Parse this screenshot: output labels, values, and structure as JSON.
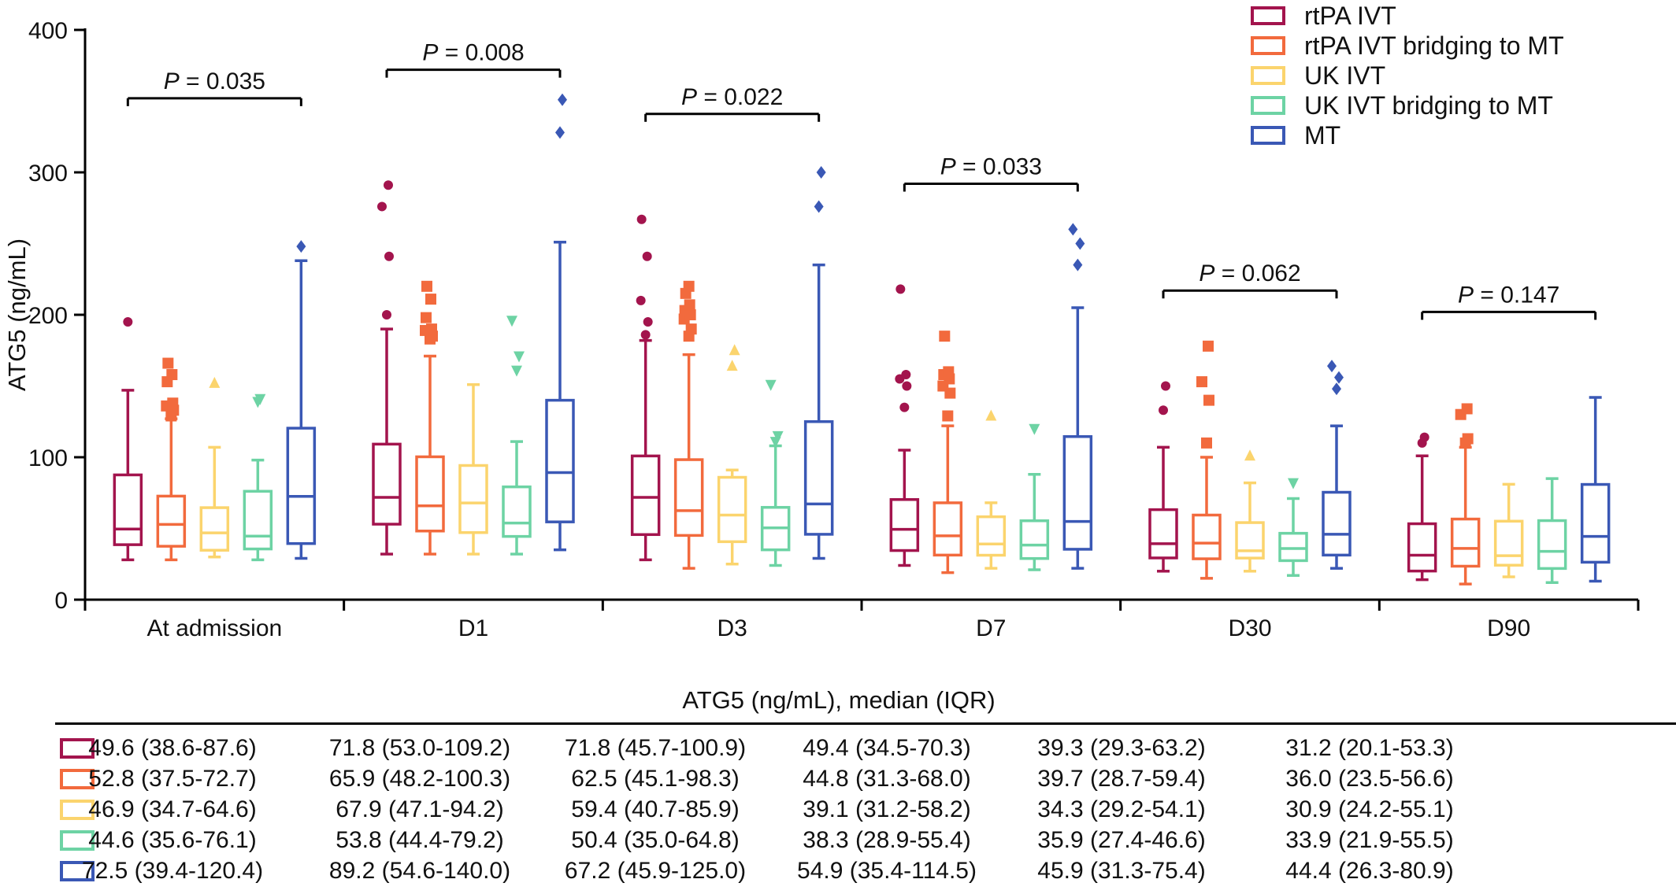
{
  "chart_data": {
    "type": "box",
    "ylabel": "ATG5 (ng/mL)",
    "ylim": [
      0,
      400
    ],
    "yticks": [
      0,
      100,
      200,
      300,
      400
    ],
    "grid": false,
    "legend_position": "top-right",
    "categories": [
      "At admission",
      "D1",
      "D3",
      "D7",
      "D30",
      "D90"
    ],
    "series": [
      {
        "name": "rtPA IVT",
        "color": "#a3144d",
        "marker": "circle",
        "boxes": [
          {
            "min": 28,
            "q1": 38.6,
            "median": 49.6,
            "q3": 87.6,
            "max": 147,
            "outliers": [
              195
            ]
          },
          {
            "min": 32,
            "q1": 53.0,
            "median": 71.8,
            "q3": 109.2,
            "max": 190,
            "outliers": [
              200,
              241,
              276,
              291
            ]
          },
          {
            "min": 28,
            "q1": 45.7,
            "median": 71.8,
            "q3": 100.9,
            "max": 182,
            "outliers": [
              186,
              195,
              210,
              241,
              267
            ]
          },
          {
            "min": 24,
            "q1": 34.5,
            "median": 49.4,
            "q3": 70.3,
            "max": 105,
            "outliers": [
              135,
              150,
              155,
              158,
              218
            ]
          },
          {
            "min": 20,
            "q1": 29.3,
            "median": 39.3,
            "q3": 63.2,
            "max": 107,
            "outliers": [
              133,
              150
            ]
          },
          {
            "min": 14,
            "q1": 20.1,
            "median": 31.2,
            "q3": 53.3,
            "max": 101,
            "outliers": [
              110,
              114
            ]
          }
        ]
      },
      {
        "name": "rtPA IVT bridging to MT",
        "color": "#f26a3d",
        "marker": "square",
        "boxes": [
          {
            "min": 28,
            "q1": 37.5,
            "median": 52.8,
            "q3": 72.7,
            "max": 127,
            "outliers": [
              129,
              133,
              136,
              138,
              153,
              158,
              166
            ]
          },
          {
            "min": 32,
            "q1": 48.2,
            "median": 65.9,
            "q3": 100.3,
            "max": 171,
            "outliers": [
              183,
              185,
              189,
              190,
              198,
              211,
              220
            ]
          },
          {
            "min": 22,
            "q1": 45.1,
            "median": 62.5,
            "q3": 98.3,
            "max": 172,
            "outliers": [
              185,
              190,
              197,
              200,
              203,
              207,
              215,
              220
            ]
          },
          {
            "min": 19,
            "q1": 31.3,
            "median": 44.8,
            "q3": 68.0,
            "max": 122,
            "outliers": [
              129,
              145,
              150,
              155,
              158,
              160,
              185
            ]
          },
          {
            "min": 15,
            "q1": 28.7,
            "median": 39.7,
            "q3": 59.4,
            "max": 100,
            "outliers": [
              110,
              140,
              153,
              178
            ]
          },
          {
            "min": 11,
            "q1": 23.5,
            "median": 36.0,
            "q3": 56.6,
            "max": 107,
            "outliers": [
              110,
              113,
              130,
              134
            ]
          }
        ]
      },
      {
        "name": "UK IVT",
        "color": "#fbd46d",
        "marker": "triangle",
        "boxes": [
          {
            "min": 30,
            "q1": 34.7,
            "median": 46.9,
            "q3": 64.6,
            "max": 107,
            "outliers": [
              152
            ]
          },
          {
            "min": 32,
            "q1": 47.1,
            "median": 67.9,
            "q3": 94.2,
            "max": 151,
            "outliers": []
          },
          {
            "min": 25,
            "q1": 40.7,
            "median": 59.4,
            "q3": 85.9,
            "max": 91,
            "outliers": [
              164,
              175
            ]
          },
          {
            "min": 22,
            "q1": 31.2,
            "median": 39.1,
            "q3": 58.2,
            "max": 68,
            "outliers": [
              129
            ]
          },
          {
            "min": 20,
            "q1": 29.2,
            "median": 34.3,
            "q3": 54.1,
            "max": 82,
            "outliers": [
              101
            ]
          },
          {
            "min": 16,
            "q1": 24.2,
            "median": 30.9,
            "q3": 55.1,
            "max": 81,
            "outliers": []
          }
        ]
      },
      {
        "name": "UK IVT bridging to MT",
        "color": "#6dd3a4",
        "marker": "triangle-down",
        "boxes": [
          {
            "min": 28,
            "q1": 35.6,
            "median": 44.6,
            "q3": 76.1,
            "max": 98,
            "outliers": [
              139,
              141
            ]
          },
          {
            "min": 32,
            "q1": 44.4,
            "median": 53.8,
            "q3": 79.2,
            "max": 111,
            "outliers": [
              161,
              171,
              196
            ]
          },
          {
            "min": 24,
            "q1": 35.0,
            "median": 50.4,
            "q3": 64.8,
            "max": 108,
            "outliers": [
              111,
              115,
              151
            ]
          },
          {
            "min": 21,
            "q1": 28.9,
            "median": 38.3,
            "q3": 55.4,
            "max": 88,
            "outliers": [
              120
            ]
          },
          {
            "min": 17,
            "q1": 27.4,
            "median": 35.9,
            "q3": 46.6,
            "max": 71,
            "outliers": [
              82
            ]
          },
          {
            "min": 12,
            "q1": 21.9,
            "median": 33.9,
            "q3": 55.5,
            "max": 85,
            "outliers": []
          }
        ]
      },
      {
        "name": "MT",
        "color": "#3a58b5",
        "marker": "diamond",
        "boxes": [
          {
            "min": 29,
            "q1": 39.4,
            "median": 72.5,
            "q3": 120.4,
            "max": 238,
            "outliers": [
              248
            ]
          },
          {
            "min": 35,
            "q1": 54.6,
            "median": 89.2,
            "q3": 140.0,
            "max": 251,
            "outliers": [
              328,
              351
            ]
          },
          {
            "min": 29,
            "q1": 45.9,
            "median": 67.2,
            "q3": 125.0,
            "max": 235,
            "outliers": [
              276,
              300
            ]
          },
          {
            "min": 22,
            "q1": 35.4,
            "median": 54.9,
            "q3": 114.5,
            "max": 205,
            "outliers": [
              235,
              250,
              260
            ]
          },
          {
            "min": 22,
            "q1": 31.3,
            "median": 45.9,
            "q3": 75.4,
            "max": 122,
            "outliers": [
              148,
              156,
              164
            ]
          },
          {
            "min": 13,
            "q1": 26.3,
            "median": 44.4,
            "q3": 80.9,
            "max": 142,
            "outliers": []
          }
        ]
      }
    ],
    "annotations": [
      {
        "text": "P = 0.035",
        "category": "At admission",
        "y": 352
      },
      {
        "text": "P = 0.008",
        "category": "D1",
        "y": 372
      },
      {
        "text": "P = 0.022",
        "category": "D3",
        "y": 341
      },
      {
        "text": "P = 0.033",
        "category": "D7",
        "y": 292
      },
      {
        "text": "P = 0.062",
        "category": "D30",
        "y": 217
      },
      {
        "text": "P = 0.147",
        "category": "D90",
        "y": 202
      }
    ]
  },
  "summary_table": {
    "title": "ATG5 (ng/mL), median (IQR)",
    "rows": [
      {
        "color": "#a3144d",
        "cells": [
          "49.6 (38.6-87.6)",
          "71.8 (53.0-109.2)",
          "71.8 (45.7-100.9)",
          "49.4 (34.5-70.3)",
          "39.3 (29.3-63.2)",
          "31.2 (20.1-53.3)"
        ]
      },
      {
        "color": "#f26a3d",
        "cells": [
          "52.8 (37.5-72.7)",
          "65.9 (48.2-100.3)",
          "62.5 (45.1-98.3)",
          "44.8 (31.3-68.0)",
          "39.7 (28.7-59.4)",
          "36.0 (23.5-56.6)"
        ]
      },
      {
        "color": "#fbd46d",
        "cells": [
          "46.9 (34.7-64.6)",
          "67.9 (47.1-94.2)",
          "59.4 (40.7-85.9)",
          "39.1 (31.2-58.2)",
          "34.3 (29.2-54.1)",
          "30.9 (24.2-55.1)"
        ]
      },
      {
        "color": "#6dd3a4",
        "cells": [
          "44.6 (35.6-76.1)",
          "53.8 (44.4-79.2)",
          "50.4 (35.0-64.8)",
          "38.3 (28.9-55.4)",
          "35.9 (27.4-46.6)",
          "33.9 (21.9-55.5)"
        ]
      },
      {
        "color": "#3a58b5",
        "cells": [
          "72.5 (39.4-120.4)",
          "89.2 (54.6-140.0)",
          "67.2 (45.9-125.0)",
          "54.9 (35.4-114.5)",
          "45.9 (31.3-75.4)",
          "44.4 (26.3-80.9)"
        ]
      }
    ]
  }
}
